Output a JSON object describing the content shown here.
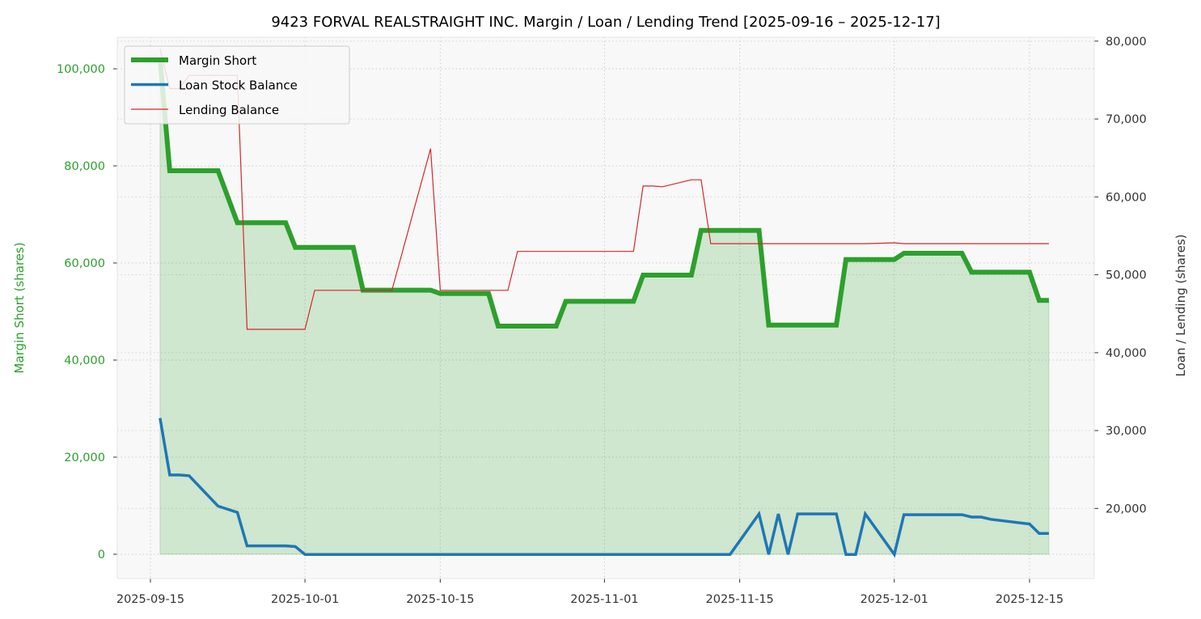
{
  "chart_data": {
    "type": "line",
    "title": "9423 FORVAL REALSTRAIGHT INC. Margin / Loan / Lending Trend [2025-09-16 – 2025-12-17]",
    "ylabel_left": "Margin Short (shares)",
    "ylabel_right": "Loan / Lending (shares)",
    "xlabel": "",
    "x_ticks": [
      "2025-09-15",
      "2025-10-01",
      "2025-10-15",
      "2025-11-01",
      "2025-11-15",
      "2025-12-01",
      "2025-12-15"
    ],
    "y_left_ticks": [
      "0",
      "20,000",
      "40,000",
      "60,000",
      "80,000",
      "100,000"
    ],
    "y_right_ticks": [
      "20,000",
      "30,000",
      "40,000",
      "50,000",
      "60,000",
      "70,000",
      "80,000"
    ],
    "ylim_left": [
      -5000,
      106500
    ],
    "ylim_right": [
      11000,
      80500
    ],
    "grid": true,
    "legend_position": "top-left",
    "colors": {
      "margin": "#2ca02c",
      "loan": "#1f77b4",
      "lending": "#d62728",
      "fill": "#2ca02c",
      "plot_bg": "#f8f8f8"
    },
    "series": [
      {
        "name": "Margin Short",
        "axis": "left",
        "points": [
          [
            "2025-09-16",
            102000
          ],
          [
            "2025-09-17",
            79000
          ],
          [
            "2025-09-18",
            79000
          ],
          [
            "2025-09-19",
            79000
          ],
          [
            "2025-09-22",
            79000
          ],
          [
            "2025-09-24",
            68300
          ],
          [
            "2025-09-25",
            68300
          ],
          [
            "2025-09-26",
            68300
          ],
          [
            "2025-09-29",
            68300
          ],
          [
            "2025-09-30",
            63200
          ],
          [
            "2025-10-01",
            63200
          ],
          [
            "2025-10-02",
            63200
          ],
          [
            "2025-10-03",
            63200
          ],
          [
            "2025-10-06",
            63200
          ],
          [
            "2025-10-07",
            54400
          ],
          [
            "2025-10-08",
            54400
          ],
          [
            "2025-10-09",
            54400
          ],
          [
            "2025-10-10",
            54400
          ],
          [
            "2025-10-14",
            54400
          ],
          [
            "2025-10-15",
            53700
          ],
          [
            "2025-10-16",
            53700
          ],
          [
            "2025-10-17",
            53700
          ],
          [
            "2025-10-20",
            53700
          ],
          [
            "2025-10-21",
            47000
          ],
          [
            "2025-10-22",
            47000
          ],
          [
            "2025-10-23",
            47000
          ],
          [
            "2025-10-24",
            47000
          ],
          [
            "2025-10-27",
            47000
          ],
          [
            "2025-10-28",
            52100
          ],
          [
            "2025-10-29",
            52100
          ],
          [
            "2025-10-30",
            52100
          ],
          [
            "2025-10-31",
            52100
          ],
          [
            "2025-11-04",
            52100
          ],
          [
            "2025-11-05",
            57500
          ],
          [
            "2025-11-06",
            57500
          ],
          [
            "2025-11-07",
            57500
          ],
          [
            "2025-11-10",
            57500
          ],
          [
            "2025-11-11",
            66700
          ],
          [
            "2025-11-12",
            66700
          ],
          [
            "2025-11-13",
            66700
          ],
          [
            "2025-11-14",
            66700
          ],
          [
            "2025-11-17",
            66700
          ],
          [
            "2025-11-18",
            47200
          ],
          [
            "2025-11-19",
            47200
          ],
          [
            "2025-11-20",
            47200
          ],
          [
            "2025-11-21",
            47200
          ],
          [
            "2025-11-25",
            47200
          ],
          [
            "2025-11-26",
            60700
          ],
          [
            "2025-11-27",
            60700
          ],
          [
            "2025-11-28",
            60700
          ],
          [
            "2025-12-01",
            60700
          ],
          [
            "2025-12-02",
            62000
          ],
          [
            "2025-12-03",
            62000
          ],
          [
            "2025-12-04",
            62000
          ],
          [
            "2025-12-05",
            62000
          ],
          [
            "2025-12-08",
            62000
          ],
          [
            "2025-12-09",
            58100
          ],
          [
            "2025-12-10",
            58100
          ],
          [
            "2025-12-11",
            58100
          ],
          [
            "2025-12-12",
            58100
          ],
          [
            "2025-12-15",
            58100
          ],
          [
            "2025-12-16",
            52300
          ],
          [
            "2025-12-17",
            52300
          ]
        ]
      },
      {
        "name": "Loan Stock Balance",
        "axis": "right",
        "points": [
          [
            "2025-09-16",
            31600
          ],
          [
            "2025-09-17",
            24300
          ],
          [
            "2025-09-18",
            24300
          ],
          [
            "2025-09-19",
            24200
          ],
          [
            "2025-09-22",
            20300
          ],
          [
            "2025-09-24",
            19500
          ],
          [
            "2025-09-25",
            15200
          ],
          [
            "2025-09-26",
            15200
          ],
          [
            "2025-09-29",
            15200
          ],
          [
            "2025-09-30",
            15100
          ],
          [
            "2025-10-01",
            14100
          ],
          [
            "2025-10-02",
            14100
          ],
          [
            "2025-10-15",
            14100
          ],
          [
            "2025-11-01",
            14100
          ],
          [
            "2025-11-14",
            14100
          ],
          [
            "2025-11-17",
            19300
          ],
          [
            "2025-11-18",
            14100
          ],
          [
            "2025-11-19",
            19300
          ],
          [
            "2025-11-20",
            14100
          ],
          [
            "2025-11-21",
            19300
          ],
          [
            "2025-11-25",
            19300
          ],
          [
            "2025-11-26",
            14100
          ],
          [
            "2025-11-27",
            14100
          ],
          [
            "2025-11-28",
            19300
          ],
          [
            "2025-12-01",
            14100
          ],
          [
            "2025-12-02",
            19200
          ],
          [
            "2025-12-05",
            19200
          ],
          [
            "2025-12-08",
            19200
          ],
          [
            "2025-12-09",
            18900
          ],
          [
            "2025-12-10",
            18900
          ],
          [
            "2025-12-11",
            18600
          ],
          [
            "2025-12-15",
            18000
          ],
          [
            "2025-12-16",
            16800
          ],
          [
            "2025-12-17",
            16800
          ]
        ]
      },
      {
        "name": "Lending Balance",
        "axis": "right",
        "points": [
          [
            "2025-09-16",
            79000
          ],
          [
            "2025-09-17",
            73900
          ],
          [
            "2025-09-18",
            73900
          ],
          [
            "2025-09-19",
            75600
          ],
          [
            "2025-09-22",
            75600
          ],
          [
            "2025-09-24",
            75600
          ],
          [
            "2025-09-25",
            43000
          ],
          [
            "2025-09-26",
            43000
          ],
          [
            "2025-09-29",
            43000
          ],
          [
            "2025-09-30",
            43000
          ],
          [
            "2025-10-01",
            43000
          ],
          [
            "2025-10-02",
            48000
          ],
          [
            "2025-10-03",
            48000
          ],
          [
            "2025-10-06",
            48000
          ],
          [
            "2025-10-07",
            48000
          ],
          [
            "2025-10-08",
            48000
          ],
          [
            "2025-10-09",
            48000
          ],
          [
            "2025-10-10",
            48000
          ],
          [
            "2025-10-14",
            66200
          ],
          [
            "2025-10-15",
            48000
          ],
          [
            "2025-10-16",
            48000
          ],
          [
            "2025-10-17",
            48000
          ],
          [
            "2025-10-20",
            48000
          ],
          [
            "2025-10-21",
            48000
          ],
          [
            "2025-10-22",
            48000
          ],
          [
            "2025-10-23",
            53000
          ],
          [
            "2025-10-24",
            53000
          ],
          [
            "2025-11-04",
            53000
          ],
          [
            "2025-11-05",
            61400
          ],
          [
            "2025-11-06",
            61400
          ],
          [
            "2025-11-07",
            61300
          ],
          [
            "2025-11-10",
            62200
          ],
          [
            "2025-11-11",
            62200
          ],
          [
            "2025-11-12",
            54000
          ],
          [
            "2025-11-13",
            54000
          ],
          [
            "2025-11-14",
            54000
          ],
          [
            "2025-11-17",
            54000
          ],
          [
            "2025-11-28",
            54000
          ],
          [
            "2025-12-01",
            54100
          ],
          [
            "2025-12-02",
            54000
          ],
          [
            "2025-12-08",
            54000
          ],
          [
            "2025-12-15",
            54000
          ],
          [
            "2025-12-17",
            54000
          ]
        ]
      }
    ]
  }
}
